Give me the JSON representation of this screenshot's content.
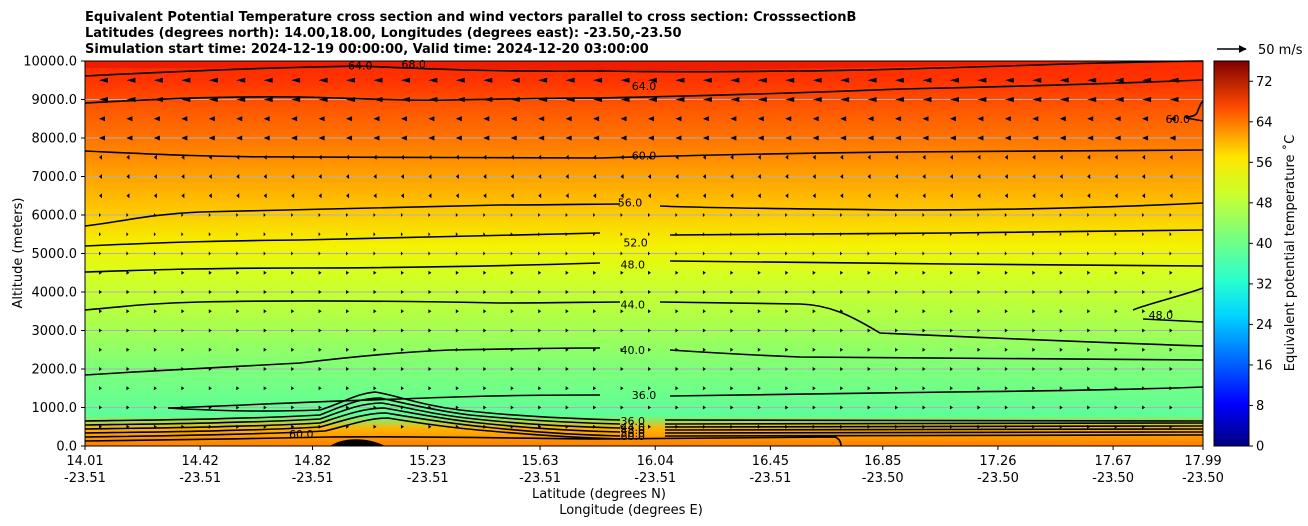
{
  "title_lines": [
    "Equivalent Potential Temperature cross section and wind vectors parallel to cross section: CrosssectionB",
    "Latitudes (degrees north): 14.00,18.00, Longitudes (degrees east): -23.50,-23.50",
    "Simulation start time: 2024-12-19 00:00:00, Valid time: 2024-12-20 03:00:00"
  ],
  "chart_data": {
    "type": "contour_cross_section",
    "ylabel": "Altitude (meters)",
    "xlabel_lat": "Latitude (degrees N)",
    "xlabel_lon": "Longitude (degrees E)",
    "ylim": [
      0,
      10000
    ],
    "y_ticks": [
      "0.0",
      "1000.0",
      "2000.0",
      "3000.0",
      "4000.0",
      "5000.0",
      "6000.0",
      "7000.0",
      "8000.0",
      "9000.0",
      "10000.0"
    ],
    "x_ticks_lat": [
      "14.01",
      "14.42",
      "14.82",
      "15.23",
      "15.63",
      "16.04",
      "16.45",
      "16.85",
      "17.26",
      "17.67",
      "17.99"
    ],
    "x_ticks_lon": [
      "-23.51",
      "-23.51",
      "-23.51",
      "-23.51",
      "-23.51",
      "-23.51",
      "-23.51",
      "-23.50",
      "-23.50",
      "-23.50",
      "-23.50"
    ],
    "grid": "horizontal",
    "colorbar": {
      "label": "Equivalent potential temperature ˚C",
      "vmin": 0,
      "vmax": 76,
      "ticks": [
        "0",
        "8",
        "16",
        "24",
        "32",
        "40",
        "48",
        "56",
        "64",
        "72"
      ]
    },
    "quiver_key": "50 m/s",
    "contour_labels": [
      {
        "text": "64.0",
        "lat": 16.0,
        "alt": 9350
      },
      {
        "text": "60.0",
        "lat": 16.0,
        "alt": 7550
      },
      {
        "text": "56.0",
        "lat": 15.95,
        "alt": 6330
      },
      {
        "text": "52.0",
        "lat": 15.97,
        "alt": 5280
      },
      {
        "text": "48.0",
        "lat": 15.96,
        "alt": 4720
      },
      {
        "text": "44.0",
        "lat": 15.96,
        "alt": 3680
      },
      {
        "text": "40.0",
        "lat": 15.96,
        "alt": 2500
      },
      {
        "text": "36.0",
        "lat": 16.0,
        "alt": 1320
      },
      {
        "text": "36.0",
        "lat": 15.96,
        "alt": 650
      },
      {
        "text": "44.0",
        "lat": 15.96,
        "alt": 500
      },
      {
        "text": "48.0",
        "lat": 15.96,
        "alt": 420
      },
      {
        "text": "56.0",
        "lat": 15.96,
        "alt": 340
      },
      {
        "text": "60.0",
        "lat": 15.96,
        "alt": 260
      },
      {
        "text": "60.0",
        "lat": 14.78,
        "alt": 310
      },
      {
        "text": "60.0",
        "lat": 17.9,
        "alt": 8500
      },
      {
        "text": "48.0",
        "lat": 17.84,
        "alt": 3400
      },
      {
        "text": "64.0",
        "lat": 14.99,
        "alt": 9880
      },
      {
        "text": "68.0",
        "lat": 15.18,
        "alt": 9920
      }
    ]
  }
}
